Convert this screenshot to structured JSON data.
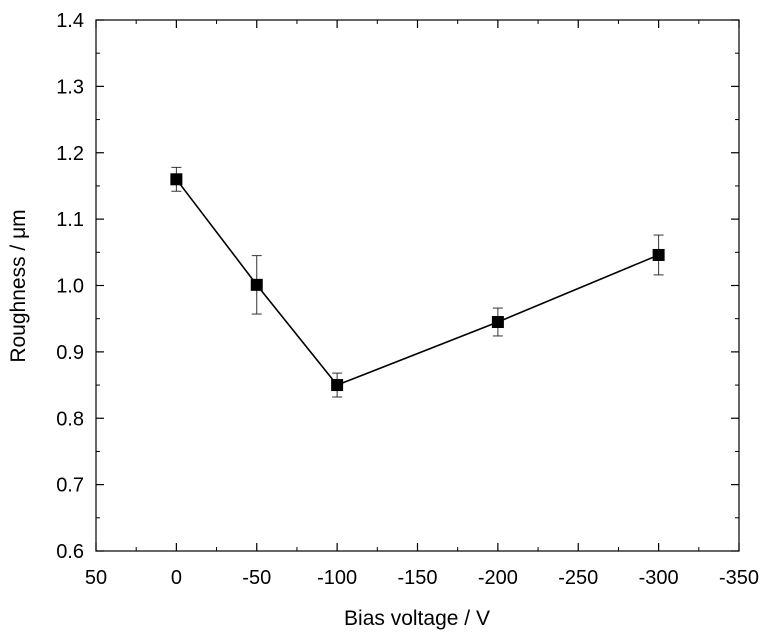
{
  "chart_data": {
    "type": "line",
    "xlabel": "Bias voltage / V",
    "ylabel": "Roughness / μm",
    "xlim": [
      50,
      -350
    ],
    "ylim": [
      0.6,
      1.4
    ],
    "x_ticks": [
      "50",
      "0",
      "-50",
      "-100",
      "-150",
      "-200",
      "-250",
      "-300",
      "-350"
    ],
    "y_ticks": [
      "0.6",
      "0.7",
      "0.8",
      "0.9",
      "1.0",
      "1.1",
      "1.2",
      "1.3",
      "1.4"
    ],
    "grid": false,
    "legend": false,
    "marker": "filled-square",
    "series": [
      {
        "x": [
          0,
          -50,
          -100,
          -200,
          -300
        ],
        "y": [
          1.16,
          1.001,
          0.85,
          0.945,
          1.046
        ],
        "error": [
          0.018,
          0.044,
          0.018,
          0.021,
          0.03
        ]
      }
    ]
  }
}
